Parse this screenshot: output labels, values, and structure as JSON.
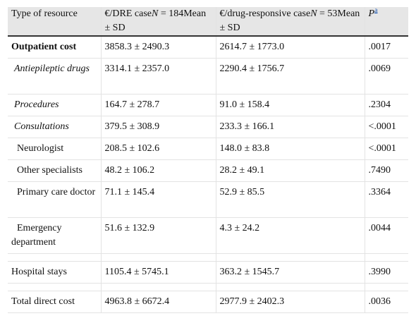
{
  "table": {
    "headers": {
      "col1": "Type of resource",
      "col2_pre": "€/DRE case",
      "col2_n": "N",
      "col2_post": " = 184Mean ± SD",
      "col3_pre": "€/drug-responsive case",
      "col3_n": "N",
      "col3_post": " = 53Mean ± SD",
      "col4": "P",
      "col4_sup": "a"
    },
    "rows": [
      {
        "resource": "Outpatient cost",
        "dre": "3858.3 ± 2490.3",
        "responsive": "2614.7 ± 1773.0",
        "p": ".0017"
      },
      {
        "resource": "Antiepileptic drugs",
        "dre": "3314.1 ± 2357.0",
        "responsive": "2290.4 ± 1756.7",
        "p": ".0069"
      },
      {
        "resource": "Procedures",
        "dre": "164.7 ± 278.7",
        "responsive": "91.0 ± 158.4",
        "p": ".2304"
      },
      {
        "resource": "Consultations",
        "dre": "379.5 ± 308.9",
        "responsive": "233.3 ± 166.1",
        "p": "<.0001"
      },
      {
        "resource": "Neurologist",
        "dre": "208.5 ± 102.6",
        "responsive": "148.0 ± 83.8",
        "p": "<.0001"
      },
      {
        "resource": "Other specialists",
        "dre": "48.2 ± 106.2",
        "responsive": "28.2 ± 49.1",
        "p": ".7490"
      },
      {
        "resource": "Primary care doctor",
        "dre": "71.1 ± 145.4",
        "responsive": "52.9 ± 85.5",
        "p": ".3364"
      },
      {
        "resource": "Emergency department",
        "dre": "51.6 ± 132.9",
        "responsive": "4.3 ± 24.2",
        "p": ".0044"
      },
      {
        "resource": "Hospital stays",
        "dre": "1105.4 ± 5745.1",
        "responsive": "363.2 ± 1545.7",
        "p": ".3990"
      },
      {
        "resource": "Total direct cost",
        "dre": "4963.8 ± 6672.4",
        "responsive": "2977.9 ± 2402.3",
        "p": ".0036"
      }
    ]
  }
}
